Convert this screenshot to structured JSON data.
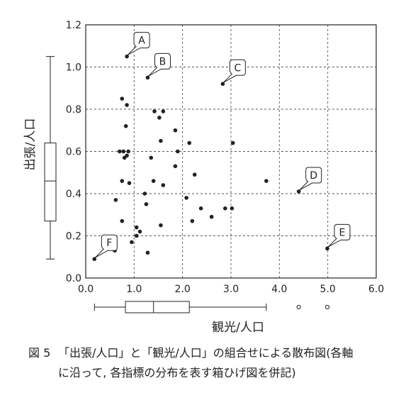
{
  "caption": {
    "figure_number": "図 5",
    "line1": "「出張/人口」と「観光/人口」の組合せによる散布図(各軸",
    "line2": "に沿って, 各指標の分布を表す箱ひげ図を併記)"
  },
  "chart_data": {
    "type": "scatter",
    "title": "",
    "xlabel": "観光/人口",
    "ylabel": "出張/人口",
    "xlim": [
      0,
      6
    ],
    "ylim": [
      0,
      1.2
    ],
    "x_ticks": [
      "0.0",
      "1.0",
      "2.0",
      "3.0",
      "4.0",
      "5.0",
      "6.0"
    ],
    "y_ticks": [
      "0.0",
      "0.2",
      "0.4",
      "0.6",
      "0.8",
      "1.0",
      "1.2"
    ],
    "grid": true,
    "points": [
      {
        "x": 0.85,
        "y": 1.05,
        "label": "A"
      },
      {
        "x": 1.28,
        "y": 0.95,
        "label": "B"
      },
      {
        "x": 2.83,
        "y": 0.92,
        "label": "C"
      },
      {
        "x": 4.4,
        "y": 0.41,
        "label": "D"
      },
      {
        "x": 4.99,
        "y": 0.14,
        "label": "E"
      },
      {
        "x": 0.18,
        "y": 0.09,
        "label": "F"
      },
      {
        "x": 0.75,
        "y": 0.85
      },
      {
        "x": 0.85,
        "y": 0.82
      },
      {
        "x": 0.83,
        "y": 0.72
      },
      {
        "x": 1.42,
        "y": 0.79
      },
      {
        "x": 1.6,
        "y": 0.79
      },
      {
        "x": 1.52,
        "y": 0.76
      },
      {
        "x": 1.85,
        "y": 0.7
      },
      {
        "x": 1.55,
        "y": 0.65
      },
      {
        "x": 0.7,
        "y": 0.6
      },
      {
        "x": 0.78,
        "y": 0.6
      },
      {
        "x": 0.88,
        "y": 0.6
      },
      {
        "x": 0.8,
        "y": 0.57
      },
      {
        "x": 0.85,
        "y": 0.58
      },
      {
        "x": 1.9,
        "y": 0.6
      },
      {
        "x": 2.14,
        "y": 0.64
      },
      {
        "x": 3.04,
        "y": 0.64
      },
      {
        "x": 1.35,
        "y": 0.57
      },
      {
        "x": 1.85,
        "y": 0.53
      },
      {
        "x": 2.25,
        "y": 0.49
      },
      {
        "x": 0.75,
        "y": 0.46
      },
      {
        "x": 0.9,
        "y": 0.45
      },
      {
        "x": 1.4,
        "y": 0.46
      },
      {
        "x": 1.6,
        "y": 0.44
      },
      {
        "x": 3.73,
        "y": 0.46
      },
      {
        "x": 1.22,
        "y": 0.4
      },
      {
        "x": 0.62,
        "y": 0.37
      },
      {
        "x": 1.25,
        "y": 0.35
      },
      {
        "x": 2.08,
        "y": 0.38
      },
      {
        "x": 2.38,
        "y": 0.33
      },
      {
        "x": 2.88,
        "y": 0.33
      },
      {
        "x": 3.02,
        "y": 0.33
      },
      {
        "x": 2.6,
        "y": 0.29
      },
      {
        "x": 2.2,
        "y": 0.27
      },
      {
        "x": 0.75,
        "y": 0.27
      },
      {
        "x": 1.55,
        "y": 0.25
      },
      {
        "x": 1.05,
        "y": 0.24
      },
      {
        "x": 1.12,
        "y": 0.22
      },
      {
        "x": 1.05,
        "y": 0.2
      },
      {
        "x": 0.95,
        "y": 0.17
      },
      {
        "x": 0.55,
        "y": 0.14
      },
      {
        "x": 0.6,
        "y": 0.13
      },
      {
        "x": 1.28,
        "y": 0.12
      }
    ],
    "boxplot_y": {
      "min": 0.09,
      "q1": 0.27,
      "median": 0.46,
      "q3": 0.64,
      "max": 1.05
    },
    "boxplot_x": {
      "min": 0.18,
      "q1": 0.82,
      "median": 1.4,
      "q3": 2.14,
      "max": 3.73,
      "outliers": [
        4.4,
        4.99
      ]
    }
  }
}
